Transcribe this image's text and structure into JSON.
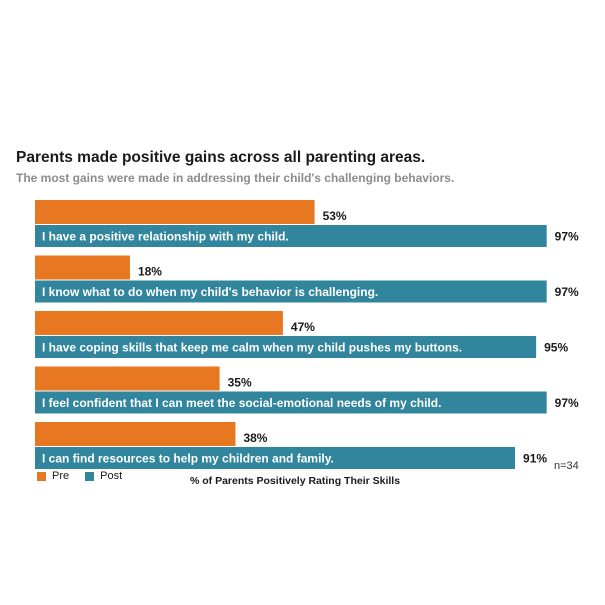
{
  "title": "Parents made positive gains across all parenting areas.",
  "subtitle": "The most gains were made in addressing their child's challenging behaviors.",
  "note": "n=34",
  "colors": {
    "pre": "#E87722",
    "post": "#31859C"
  },
  "chart_data": {
    "type": "bar",
    "orientation": "horizontal",
    "title": "Parents made positive gains across all parenting areas.",
    "subtitle": "The most gains were made in addressing their child's challenging behaviors.",
    "xlabel": "% of Parents Positively Rating Their Skills",
    "ylabel": "",
    "xlim": [
      0,
      100
    ],
    "grid": false,
    "legend_position": "bottom-left",
    "categories": [
      "I have a positive relationship with my child.",
      "I know what to do when my child's behavior is challenging.",
      "I have coping skills that keep me calm when my child pushes my buttons.",
      "I feel confident that I can meet the social-emotional needs of my child.",
      "I can find resources to help my children and family."
    ],
    "series": [
      {
        "name": "Pre",
        "values": [
          53,
          18,
          47,
          35,
          38
        ],
        "labels": [
          "53%",
          "18%",
          "47%",
          "35%",
          "38%"
        ]
      },
      {
        "name": "Post",
        "values": [
          97,
          97,
          95,
          97,
          91
        ],
        "labels": [
          "97%",
          "97%",
          "95%",
          "97%",
          "91%"
        ]
      }
    ]
  }
}
